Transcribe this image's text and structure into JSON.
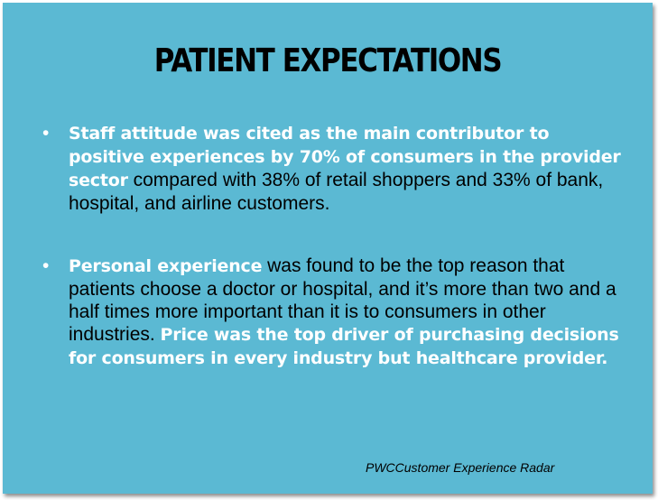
{
  "slide": {
    "title": "PATIENT EXPECTATIONS",
    "bullets": [
      {
        "highlight": "Staff attitude was cited as the main contributor to positive experiences by 70% of consumers in the provider sector",
        "text": " compared with 38% of retail shoppers and 33% of bank, hospital, and airline customers."
      },
      {
        "highlight": "Personal experience",
        "text": " was found to be the top reason that patients choose a doctor or hospital, and it’s more than two and a half times more important than it is to consumers in other industries. ",
        "highlight2": "Price was the top driver of purchasing decisions for consumers in every industry but healthcare provider."
      }
    ],
    "source": "PWCCustomer Experience Radar",
    "colors": {
      "background": "#5bb9d3",
      "highlight": "#ffffff",
      "text": "#000000"
    }
  }
}
